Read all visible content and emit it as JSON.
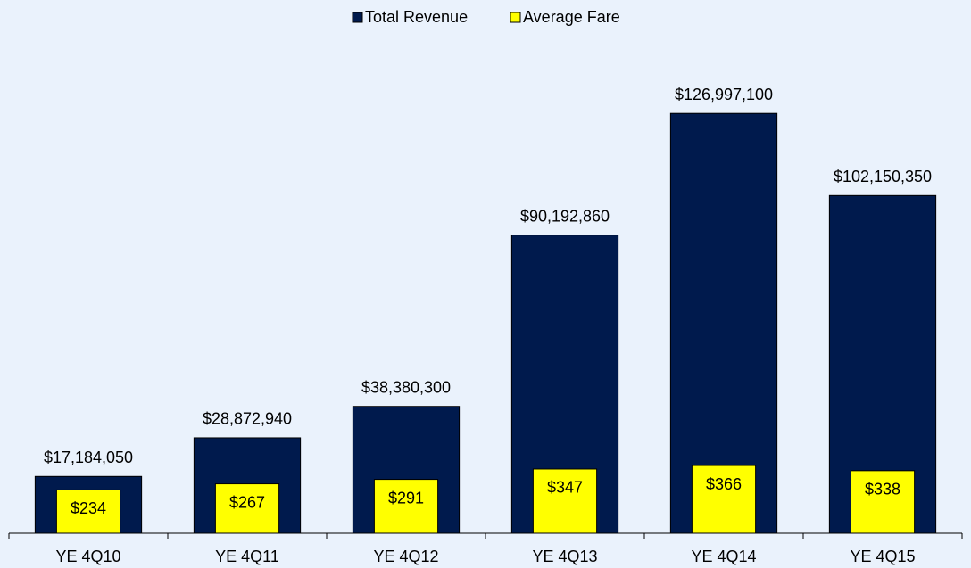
{
  "chart_data": {
    "type": "bar",
    "categories": [
      "YE 4Q10",
      "YE 4Q11",
      "YE 4Q12",
      "YE 4Q13",
      "YE 4Q14",
      "YE 4Q15"
    ],
    "series": [
      {
        "name": "Total Revenue",
        "color": "#001a4d",
        "values": [
          17184050,
          28872940,
          38380300,
          90192860,
          126997100,
          102150350
        ],
        "value_labels": [
          "$17,184,050",
          "$28,872,940",
          "$38,380,300",
          "$90,192,860",
          "$126,997,100",
          "$102,150,350"
        ]
      },
      {
        "name": "Average Fare",
        "color": "#ffff00",
        "axis": "y2",
        "values": [
          234,
          267,
          291,
          347,
          366,
          338
        ],
        "value_labels": [
          "$234",
          "$267",
          "$291",
          "$347",
          "$366",
          "$338"
        ]
      }
    ],
    "ylim": [
      0,
      140000000
    ],
    "y2lim": [
      0,
      2500
    ],
    "legend": "top"
  }
}
